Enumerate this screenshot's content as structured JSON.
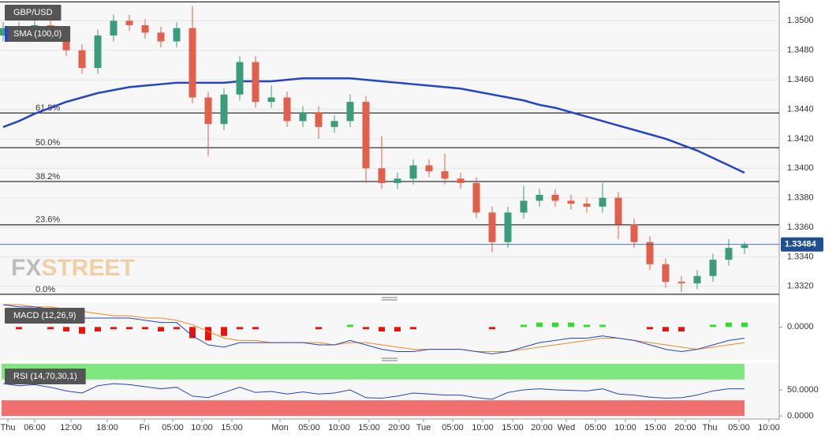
{
  "chart_data": [
    {
      "type": "candlestick",
      "title": "GBP/USD",
      "open": [
        1.349,
        1.3495,
        1.3493,
        1.3497,
        1.349,
        1.348,
        1.3468,
        1.349,
        1.35,
        1.3497,
        1.3492,
        1.3486,
        1.3495,
        1.3448,
        1.343,
        1.345,
        1.3472,
        1.3445,
        1.3448,
        1.3432,
        1.3438,
        1.3428,
        1.3432,
        1.3445,
        1.34,
        1.339,
        1.3393,
        1.3402,
        1.3398,
        1.3393,
        1.339,
        1.337,
        1.335,
        1.337,
        1.3378,
        1.3382,
        1.3378,
        1.3376,
        1.3374,
        1.338,
        1.3362,
        1.335,
        1.3335,
        1.3323,
        1.3322,
        1.3327,
        1.3338,
        1.3346
      ],
      "high": [
        1.3499,
        1.3499,
        1.3501,
        1.3501,
        1.3494,
        1.3484,
        1.3494,
        1.3504,
        1.3504,
        1.3501,
        1.3496,
        1.3499,
        1.351,
        1.3452,
        1.3454,
        1.3476,
        1.3476,
        1.3456,
        1.3452,
        1.3442,
        1.3442,
        1.3436,
        1.345,
        1.3449,
        1.3422,
        1.3397,
        1.3406,
        1.3406,
        1.341,
        1.3397,
        1.3394,
        1.3374,
        1.3374,
        1.3388,
        1.3386,
        1.3386,
        1.3382,
        1.338,
        1.339,
        1.3384,
        1.3366,
        1.3354,
        1.3339,
        1.3327,
        1.3331,
        1.3342,
        1.3352,
        1.335
      ],
      "low": [
        1.3486,
        1.3489,
        1.3489,
        1.3486,
        1.3476,
        1.3464,
        1.3464,
        1.3486,
        1.3493,
        1.3488,
        1.3482,
        1.3482,
        1.3444,
        1.3408,
        1.3426,
        1.3446,
        1.3441,
        1.3441,
        1.3428,
        1.3428,
        1.342,
        1.3424,
        1.3428,
        1.339,
        1.3386,
        1.3386,
        1.3389,
        1.3394,
        1.3389,
        1.3386,
        1.3366,
        1.3343,
        1.3346,
        1.3366,
        1.3374,
        1.3374,
        1.3372,
        1.337,
        1.337,
        1.3352,
        1.3346,
        1.3331,
        1.3319,
        1.3316,
        1.3318,
        1.3323,
        1.3334,
        1.3342
      ],
      "close": [
        1.3495,
        1.3493,
        1.3497,
        1.349,
        1.348,
        1.3468,
        1.349,
        1.35,
        1.3497,
        1.3492,
        1.3486,
        1.3495,
        1.3448,
        1.343,
        1.345,
        1.3472,
        1.3445,
        1.3448,
        1.3432,
        1.3438,
        1.3428,
        1.3432,
        1.3445,
        1.34,
        1.339,
        1.3393,
        1.3402,
        1.3398,
        1.3393,
        1.339,
        1.337,
        1.335,
        1.337,
        1.3378,
        1.3382,
        1.3378,
        1.3376,
        1.3374,
        1.338,
        1.3362,
        1.335,
        1.3335,
        1.3323,
        1.3322,
        1.3327,
        1.3338,
        1.3346,
        1.3348
      ],
      "up_color": "#3b9c7c",
      "down_color": "#e0604c",
      "indicator": {
        "name": "SMA (100,0)",
        "color": "#2445c8",
        "values": [
          1.3428,
          1.3432,
          1.3437,
          1.3441,
          1.3445,
          1.3448,
          1.3451,
          1.3453,
          1.3455,
          1.3456,
          1.3457,
          1.3458,
          1.3458,
          1.3458,
          1.3458,
          1.3459,
          1.3459,
          1.3459,
          1.346,
          1.3461,
          1.3461,
          1.3461,
          1.3461,
          1.346,
          1.3459,
          1.3458,
          1.3457,
          1.3456,
          1.3455,
          1.3454,
          1.3452,
          1.345,
          1.3448,
          1.3446,
          1.3443,
          1.3441,
          1.3438,
          1.3435,
          1.3432,
          1.3429,
          1.3426,
          1.3423,
          1.342,
          1.3416,
          1.3412,
          1.3407,
          1.3402,
          1.3397
        ]
      },
      "fib_levels": [
        {
          "label": "61.8%",
          "price": 1.34375
        },
        {
          "label": "50.0%",
          "price": 1.3414
        },
        {
          "label": "38.2%",
          "price": 1.3391
        },
        {
          "label": "23.6%",
          "price": 1.33617
        },
        {
          "label": "0.0%",
          "price": 1.33146
        }
      ],
      "fib_top": 1.35128,
      "last_price": 1.33484,
      "watermark": [
        "FX",
        "STREET"
      ],
      "ylim": [
        1.3314,
        1.3513
      ],
      "yticks": [
        {
          "value": 1.332,
          "label": "1.3320"
        },
        {
          "value": 1.334,
          "label": "1.3340"
        },
        {
          "value": 1.336,
          "label": "1.3360"
        },
        {
          "value": 1.338,
          "label": "1.3380"
        },
        {
          "value": 1.34,
          "label": "1.3400"
        },
        {
          "value": 1.342,
          "label": "1.3420"
        },
        {
          "value": 1.344,
          "label": "1.3440"
        },
        {
          "value": 1.346,
          "label": "1.3460"
        },
        {
          "value": 1.348,
          "label": "1.3480"
        },
        {
          "value": 1.35,
          "label": "1.3500"
        }
      ],
      "grid": true
    },
    {
      "type": "macd",
      "title": "MACD (12,26,9)",
      "macd": {
        "color": "#2445c8",
        "values": [
          0.001,
          0.0009,
          0.0009,
          0.0008,
          0.0006,
          0.0004,
          0.0004,
          0.0004,
          0.0004,
          0.0003,
          0.0002,
          0.0002,
          -0.0004,
          -0.0008,
          -0.0009,
          -0.0007,
          -0.0007,
          -0.0007,
          -0.0007,
          -0.0007,
          -0.0008,
          -0.0008,
          -0.0006,
          -0.0008,
          -0.001,
          -0.0011,
          -0.0011,
          -0.001,
          -0.001,
          -0.001,
          -0.0011,
          -0.0012,
          -0.0011,
          -0.0009,
          -0.0007,
          -0.0006,
          -0.0005,
          -0.0005,
          -0.0004,
          -0.0005,
          -0.0006,
          -0.0008,
          -0.001,
          -0.0011,
          -0.001,
          -0.0008,
          -0.0006,
          -0.0005
        ]
      },
      "signal": {
        "color": "#f08a24",
        "values": [
          0.001,
          0.001,
          0.0009,
          0.0009,
          0.0008,
          0.0007,
          0.0006,
          0.0005,
          0.0005,
          0.0004,
          0.0004,
          0.0003,
          0.0001,
          -0.0002,
          -0.0005,
          -0.0006,
          -0.0006,
          -0.0007,
          -0.0007,
          -0.0007,
          -0.0007,
          -0.0008,
          -0.0007,
          -0.0007,
          -0.0008,
          -0.0009,
          -0.001,
          -0.001,
          -0.001,
          -0.001,
          -0.0011,
          -0.0011,
          -0.0011,
          -0.001,
          -0.0009,
          -0.0008,
          -0.0007,
          -0.0006,
          -0.0005,
          -0.0005,
          -0.0006,
          -0.0007,
          -0.0008,
          -0.0009,
          -0.001,
          -0.0009,
          -0.0008,
          -0.0007
        ]
      },
      "histogram": {
        "up_color": "#2ee02e",
        "down_color": "#e8140c",
        "values": [
          0,
          -0.0001,
          0,
          -0.0001,
          -0.0002,
          -0.0003,
          -0.0002,
          -0.0001,
          -0.0001,
          -0.0001,
          -0.0002,
          -0.0001,
          -0.0005,
          -0.0006,
          -0.0004,
          -0.0001,
          -0.0001,
          0,
          0,
          0,
          -0.0001,
          0,
          0.0001,
          -0.0001,
          -0.0002,
          -0.0002,
          -0.0001,
          0,
          0,
          0,
          0,
          -0.0001,
          0,
          0.0001,
          0.0002,
          0.0002,
          0.0002,
          0.0001,
          0.0001,
          0,
          0,
          -0.0001,
          -0.0002,
          -0.0002,
          0,
          0.0001,
          0.0002,
          0.0002
        ]
      },
      "ylim": [
        -0.0014,
        0.001
      ],
      "yticks": [
        {
          "value": 0,
          "label": "0.0000"
        }
      ]
    },
    {
      "type": "rsi",
      "title": "RSI (14,70,30,1)",
      "color": "#2445c8",
      "values": [
        62,
        58,
        60,
        55,
        48,
        44,
        58,
        62,
        60,
        56,
        52,
        55,
        38,
        35,
        45,
        55,
        45,
        47,
        42,
        46,
        42,
        44,
        50,
        35,
        34,
        38,
        44,
        42,
        40,
        40,
        35,
        32,
        45,
        50,
        52,
        50,
        49,
        48,
        52,
        42,
        40,
        36,
        34,
        35,
        40,
        48,
        52,
        52
      ],
      "overbought": 70,
      "oversold": 30,
      "overbought_color": "#7ee87e",
      "oversold_color": "#f07070",
      "ylim": [
        0,
        100
      ],
      "yticks": [
        {
          "value": 50,
          "label": "50.0000"
        },
        {
          "value": 0,
          "label": "0.0000"
        }
      ],
      "xtick_labels": [
        "Thu",
        "06:00",
        "12:00",
        "18:00",
        "Fri",
        "05:00",
        "10:00",
        "15:00",
        "Mon",
        "05:00",
        "10:00",
        "15:00",
        "20:00",
        "Tue",
        "05:00",
        "10:00",
        "15:00",
        "20:00",
        "Wed",
        "05:00",
        "10:00",
        "15:00",
        "20:00",
        "Thu",
        "05:00",
        "10:00"
      ]
    }
  ]
}
